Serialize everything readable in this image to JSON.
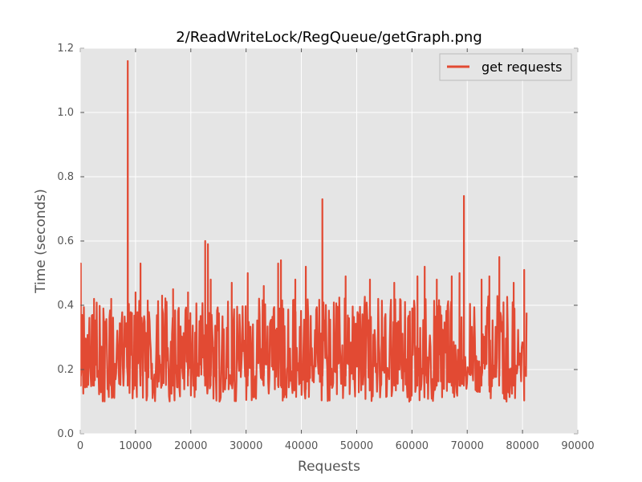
{
  "chart_data": {
    "type": "line",
    "title": "2/ReadWriteLock/RegQueue/getGraph.png",
    "xlabel": "Requests",
    "ylabel": "Time (seconds)",
    "xlim": [
      0,
      90000
    ],
    "ylim": [
      0,
      1.2
    ],
    "xticks": [
      0,
      10000,
      20000,
      30000,
      40000,
      50000,
      60000,
      70000,
      80000,
      90000
    ],
    "yticks": [
      0.0,
      0.2,
      0.4,
      0.6,
      0.8,
      1.0,
      1.2
    ],
    "xtick_labels": [
      "0",
      "10000",
      "20000",
      "30000",
      "40000",
      "50000",
      "60000",
      "70000",
      "80000",
      "90000"
    ],
    "ytick_labels": [
      "0.0",
      "0.2",
      "0.4",
      "0.6",
      "0.8",
      "1.0",
      "1.2"
    ],
    "grid": true,
    "legend_position": "top-right",
    "series": [
      {
        "name": "get requests",
        "color": "#E24A33",
        "x_range": [
          0,
          80800
        ],
        "typical_band": [
          0.1,
          0.35
        ],
        "spikes": [
          {
            "x": 100,
            "y": 0.53
          },
          {
            "x": 2500,
            "y": 0.42
          },
          {
            "x": 5600,
            "y": 0.42
          },
          {
            "x": 8600,
            "y": 1.16
          },
          {
            "x": 10000,
            "y": 0.44
          },
          {
            "x": 10900,
            "y": 0.53
          },
          {
            "x": 14800,
            "y": 0.43
          },
          {
            "x": 16800,
            "y": 0.45
          },
          {
            "x": 19500,
            "y": 0.44
          },
          {
            "x": 22600,
            "y": 0.6
          },
          {
            "x": 23100,
            "y": 0.59
          },
          {
            "x": 23600,
            "y": 0.48
          },
          {
            "x": 27400,
            "y": 0.47
          },
          {
            "x": 30300,
            "y": 0.5
          },
          {
            "x": 33200,
            "y": 0.46
          },
          {
            "x": 35800,
            "y": 0.53
          },
          {
            "x": 36300,
            "y": 0.54
          },
          {
            "x": 38900,
            "y": 0.48
          },
          {
            "x": 40800,
            "y": 0.52
          },
          {
            "x": 43800,
            "y": 0.73
          },
          {
            "x": 48000,
            "y": 0.49
          },
          {
            "x": 52400,
            "y": 0.48
          },
          {
            "x": 56800,
            "y": 0.47
          },
          {
            "x": 61000,
            "y": 0.49
          },
          {
            "x": 62300,
            "y": 0.52
          },
          {
            "x": 64500,
            "y": 0.48
          },
          {
            "x": 67200,
            "y": 0.49
          },
          {
            "x": 68600,
            "y": 0.5
          },
          {
            "x": 69400,
            "y": 0.74
          },
          {
            "x": 72600,
            "y": 0.48
          },
          {
            "x": 74000,
            "y": 0.49
          },
          {
            "x": 75800,
            "y": 0.55
          },
          {
            "x": 78400,
            "y": 0.47
          },
          {
            "x": 80300,
            "y": 0.51
          }
        ]
      }
    ]
  }
}
